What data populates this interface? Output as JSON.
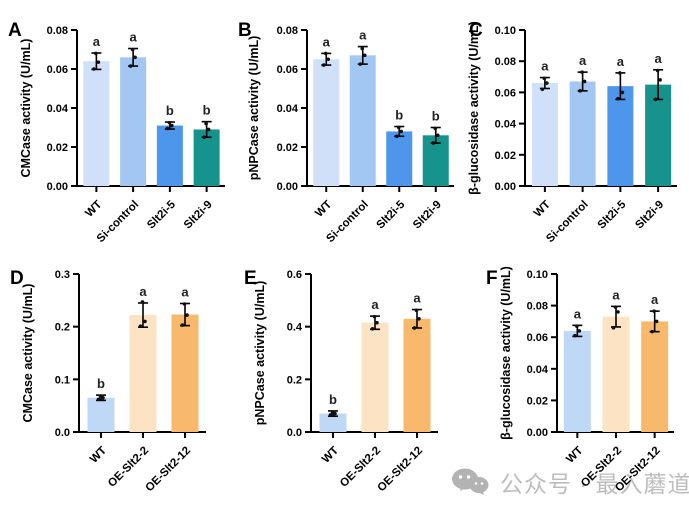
{
  "watermark": {
    "icon": "wechat-icon",
    "text": "公众号 · 最入蘑道"
  },
  "chart_data": [
    {
      "panel": "A",
      "type": "bar",
      "title": "",
      "xlabel": "",
      "ylabel": "CMCase activity (U/mL)",
      "ylim": [
        0,
        0.08
      ],
      "ytick_step": 0.02,
      "ytick_decimals": 2,
      "grid": false,
      "legend": null,
      "categories": [
        "WT",
        "Si-control",
        "Slt2i-5",
        "Slt2i-9"
      ],
      "values": [
        0.064,
        0.066,
        0.031,
        0.029
      ],
      "errors": [
        0.0042,
        0.0045,
        0.0018,
        0.004
      ],
      "points": [
        [
          0.06,
          0.0635,
          0.068
        ],
        [
          0.0615,
          0.066,
          0.07
        ],
        [
          0.0295,
          0.031,
          0.0325
        ],
        [
          0.025,
          0.029,
          0.032
        ]
      ],
      "sig_letters": [
        "a",
        "a",
        "b",
        "b"
      ],
      "bar_colors": [
        "#cfe0f8",
        "#a3c7f3",
        "#4d96ec",
        "#17938e"
      ]
    },
    {
      "panel": "B",
      "type": "bar",
      "title": "",
      "xlabel": "",
      "ylabel": "pNPCase activity (U/mL)",
      "ylim": [
        0,
        0.08
      ],
      "ytick_step": 0.02,
      "ytick_decimals": 2,
      "grid": false,
      "legend": null,
      "categories": [
        "WT",
        "Si-control",
        "Slt2i-5",
        "Slt2i-9"
      ],
      "values": [
        0.065,
        0.067,
        0.028,
        0.026
      ],
      "errors": [
        0.003,
        0.0045,
        0.0025,
        0.004
      ],
      "points": [
        [
          0.062,
          0.065,
          0.068
        ],
        [
          0.0625,
          0.067,
          0.0705
        ],
        [
          0.0255,
          0.028,
          0.03
        ],
        [
          0.022,
          0.026,
          0.0295
        ]
      ],
      "sig_letters": [
        "a",
        "a",
        "b",
        "b"
      ],
      "bar_colors": [
        "#cfe0f8",
        "#a3c7f3",
        "#4d96ec",
        "#17938e"
      ]
    },
    {
      "panel": "C",
      "type": "bar",
      "title": "",
      "xlabel": "",
      "ylabel": "β-glucosidase activity (U/mL)",
      "ylim": [
        0,
        0.1
      ],
      "ytick_step": 0.02,
      "ytick_decimals": 2,
      "grid": false,
      "legend": null,
      "categories": [
        "WT",
        "Si-control",
        "Slt2i-5",
        "Slt2i-9"
      ],
      "values": [
        0.066,
        0.067,
        0.064,
        0.065
      ],
      "errors": [
        0.0035,
        0.006,
        0.0085,
        0.0095
      ],
      "points": [
        [
          0.062,
          0.066,
          0.069
        ],
        [
          0.061,
          0.067,
          0.073
        ],
        [
          0.056,
          0.06,
          0.0725
        ],
        [
          0.0555,
          0.068,
          0.074
        ]
      ],
      "sig_letters": [
        "a",
        "a",
        "a",
        "a"
      ],
      "bar_colors": [
        "#cfe0f8",
        "#a3c7f3",
        "#4d96ec",
        "#17938e"
      ]
    },
    {
      "panel": "D",
      "type": "bar",
      "title": "",
      "xlabel": "",
      "ylabel": "CMCase activity (U/mL)",
      "ylim": [
        0,
        0.3
      ],
      "ytick_step": 0.1,
      "ytick_decimals": 1,
      "grid": false,
      "legend": null,
      "categories": [
        "WT",
        "OE-Slt2-2",
        "OE-Slt2-12"
      ],
      "values": [
        0.065,
        0.222,
        0.223
      ],
      "errors": [
        0.005,
        0.023,
        0.021
      ],
      "points": [
        [
          0.062,
          0.065,
          0.068
        ],
        [
          0.201,
          0.21,
          0.247
        ],
        [
          0.203,
          0.222,
          0.243
        ]
      ],
      "sig_letters": [
        "b",
        "a",
        "a"
      ],
      "bar_colors": [
        "#bfd8f5",
        "#fce3c3",
        "#f8b96d"
      ]
    },
    {
      "panel": "E",
      "type": "bar",
      "title": "",
      "xlabel": "",
      "ylabel": "pNPCase activity (U/mL)",
      "ylim": [
        0,
        0.6
      ],
      "ytick_step": 0.2,
      "ytick_decimals": 1,
      "grid": false,
      "legend": null,
      "categories": [
        "WT",
        "OE-Slt2-2",
        "OE-Slt2-12"
      ],
      "values": [
        0.07,
        0.415,
        0.43
      ],
      "errors": [
        0.01,
        0.025,
        0.035
      ],
      "points": [
        [
          0.065,
          0.07,
          0.075
        ],
        [
          0.392,
          0.415,
          0.438
        ],
        [
          0.395,
          0.43,
          0.462
        ]
      ],
      "sig_letters": [
        "b",
        "a",
        "a"
      ],
      "bar_colors": [
        "#bfd8f5",
        "#fce3c3",
        "#f8b96d"
      ]
    },
    {
      "panel": "F",
      "type": "bar",
      "title": "",
      "xlabel": "",
      "ylabel": "β-glucosidase activity (U/mL)",
      "ylim": [
        0,
        0.1
      ],
      "ytick_step": 0.02,
      "ytick_decimals": 2,
      "grid": false,
      "legend": null,
      "categories": [
        "WT",
        "OE-Slt2-2",
        "OE-Slt2-12"
      ],
      "values": [
        0.064,
        0.073,
        0.07
      ],
      "errors": [
        0.0035,
        0.0065,
        0.0065
      ],
      "points": [
        [
          0.061,
          0.064,
          0.067
        ],
        [
          0.066,
          0.076,
          0.079
        ],
        [
          0.0635,
          0.07,
          0.0765
        ]
      ],
      "sig_letters": [
        "a",
        "a",
        "a"
      ],
      "bar_colors": [
        "#bfd8f5",
        "#fce3c3",
        "#f8b96d"
      ]
    }
  ]
}
